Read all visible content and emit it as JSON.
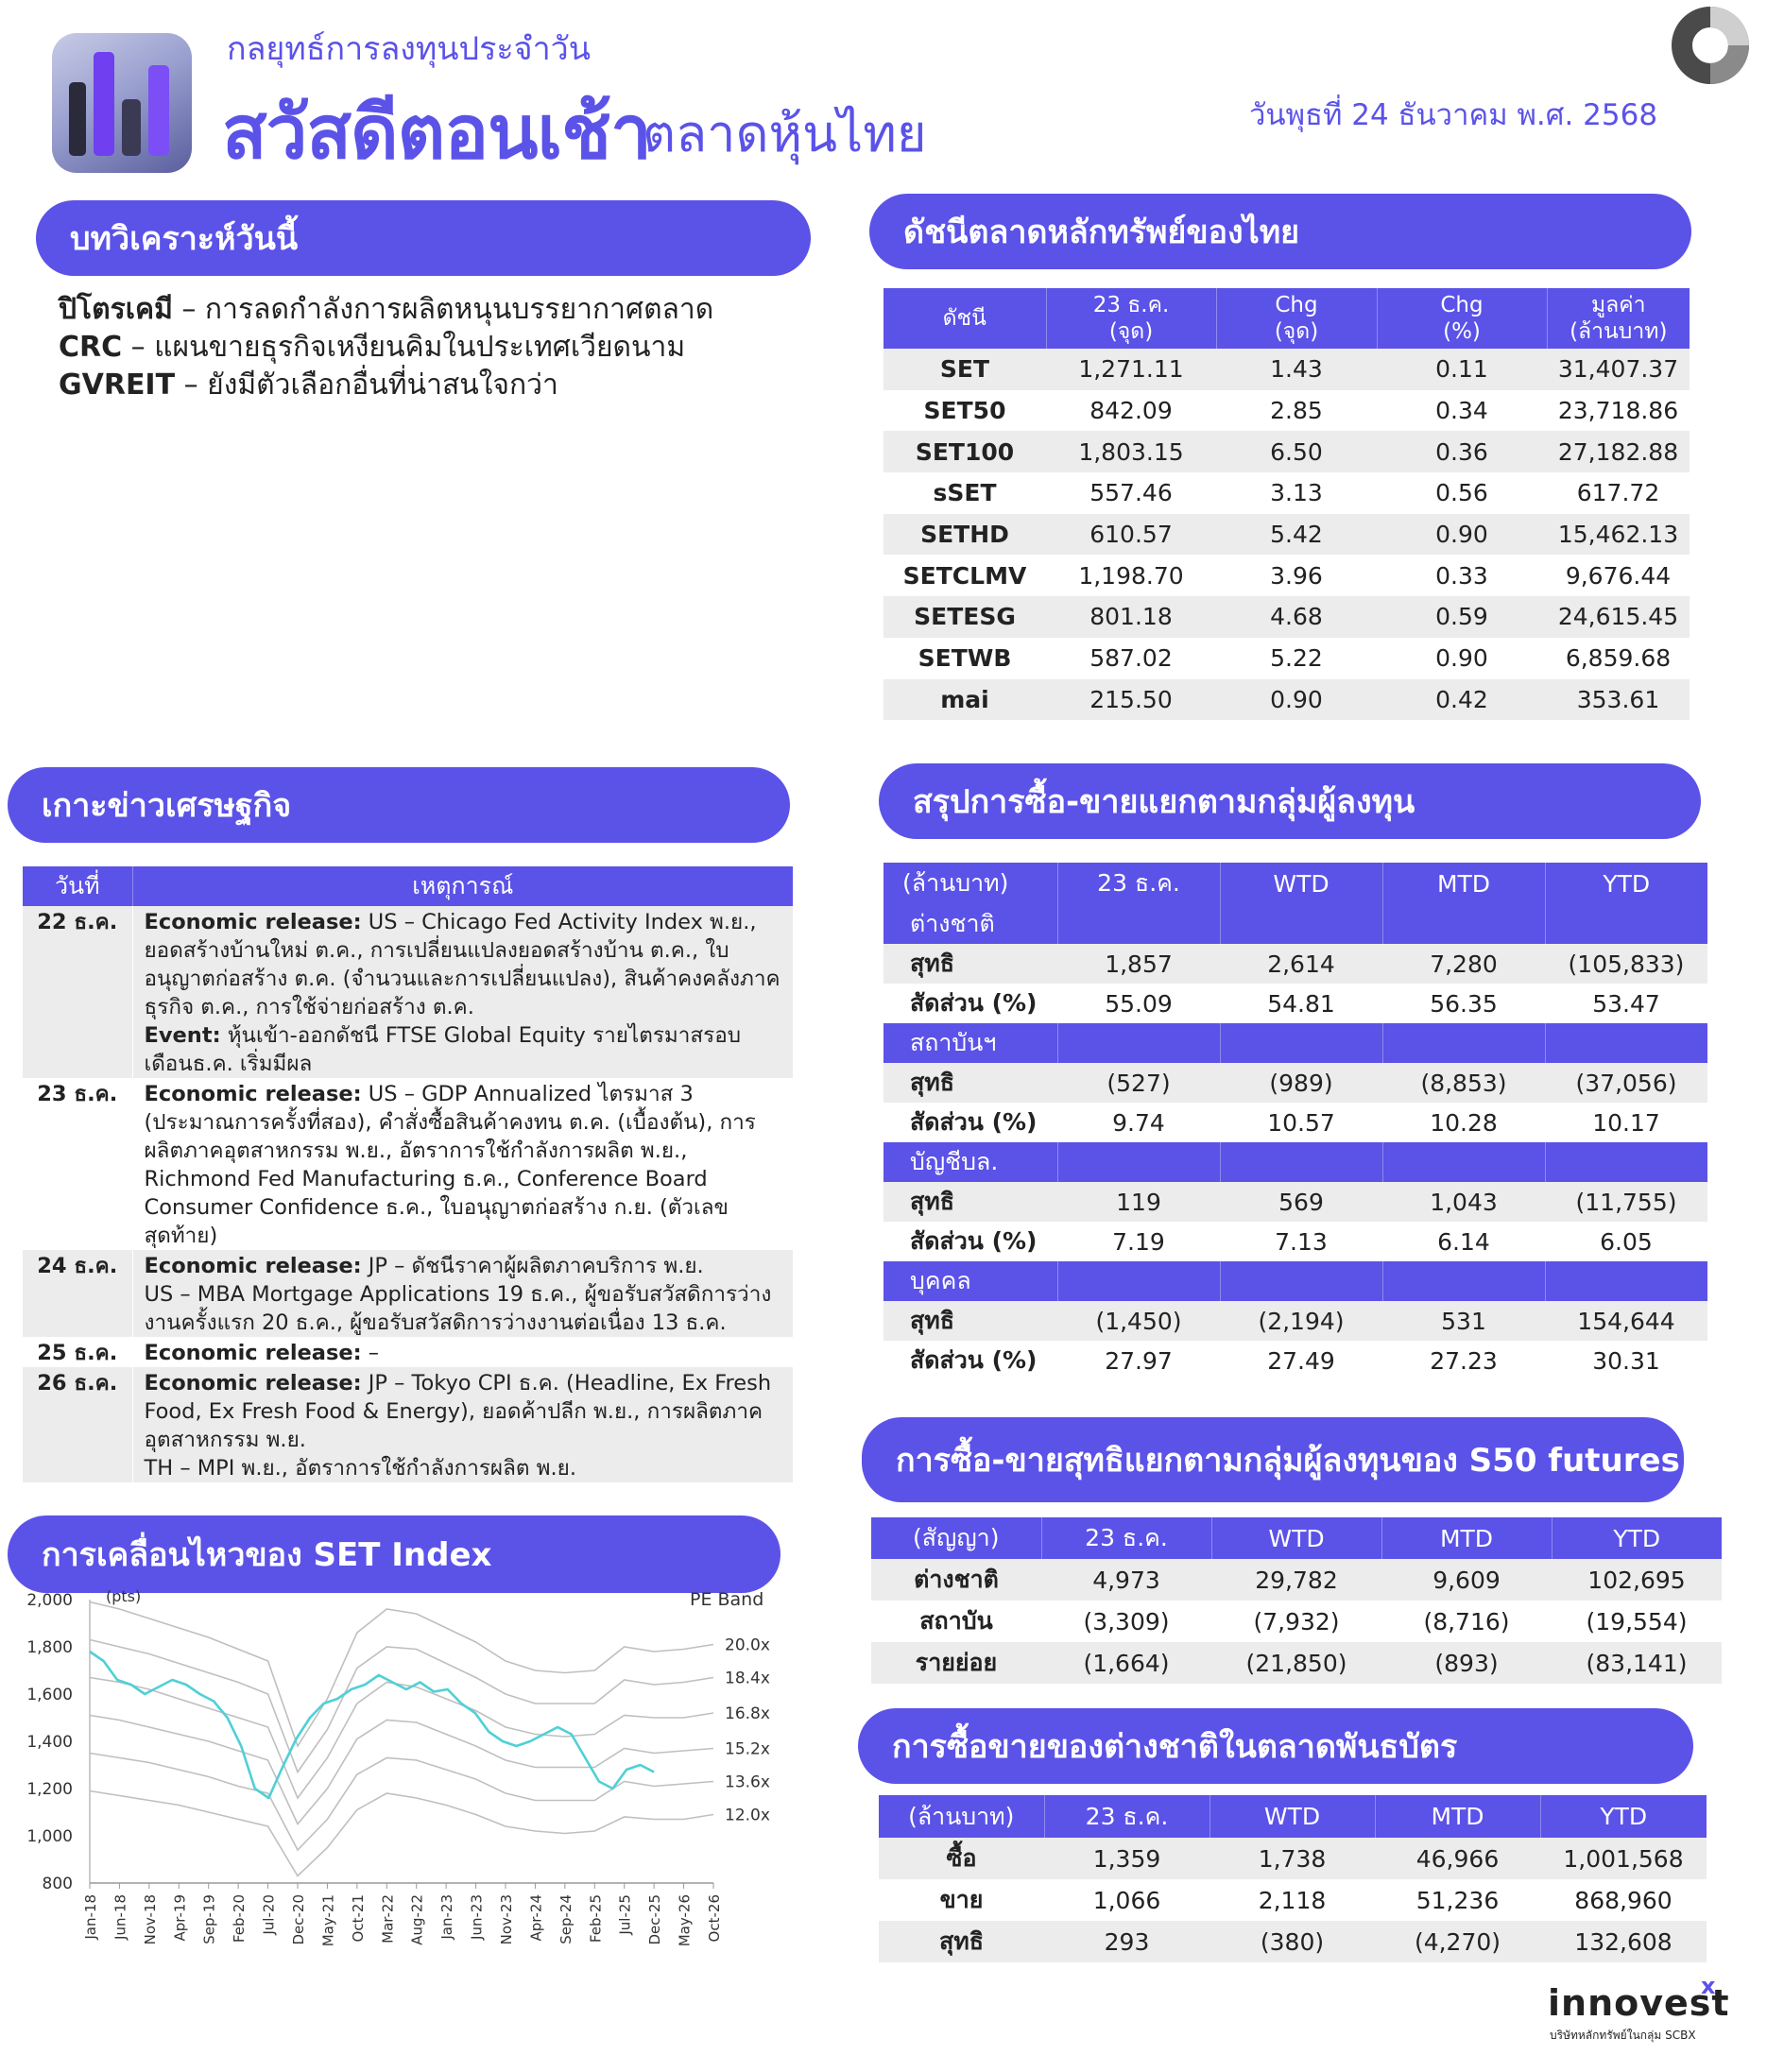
{
  "header": {
    "subtitle": "กลยุทธ์การลงทุนประจำวัน",
    "title": "สวัสดีตอนเช้า",
    "title2": "ตลาดหุ้นไทย",
    "date": "วันพุธที่ 24 ธันวาคม พ.ศ. 2568"
  },
  "analysis": {
    "heading": "บทวิเคราะห์วันนี้",
    "items": [
      {
        "name": "ปิโตรเคมี",
        "text": " – การลดกำลังการผลิตหนุนบรรยากาศตลาด"
      },
      {
        "name": "CRC",
        "text": " – แผนขายธุรกิจเหงียนคิมในประเทศเวียดนาม"
      },
      {
        "name": "GVREIT",
        "text": " – ยังมีตัวเลือกอื่นที่น่าสนใจกว่า"
      }
    ]
  },
  "index_table": {
    "heading": "ดัชนีตลาดหลักทรัพย์ของไทย",
    "headers": [
      [
        "ดัชนี",
        ""
      ],
      [
        "23 ธ.ค.",
        "(จุด)"
      ],
      [
        "Chg",
        "(จุด)"
      ],
      [
        "Chg",
        "(%)"
      ],
      [
        "มูลค่า",
        "(ล้านบาท)"
      ]
    ],
    "rows": [
      [
        "SET",
        "1,271.11",
        "1.43",
        "0.11",
        "31,407.37"
      ],
      [
        "SET50",
        "842.09",
        "2.85",
        "0.34",
        "23,718.86"
      ],
      [
        "SET100",
        "1,803.15",
        "6.50",
        "0.36",
        "27,182.88"
      ],
      [
        "sSET",
        "557.46",
        "3.13",
        "0.56",
        "617.72"
      ],
      [
        "SETHD",
        "610.57",
        "5.42",
        "0.90",
        "15,462.13"
      ],
      [
        "SETCLMV",
        "1,198.70",
        "3.96",
        "0.33",
        "9,676.44"
      ],
      [
        "SETESG",
        "801.18",
        "4.68",
        "0.59",
        "24,615.45"
      ],
      [
        "SETWB",
        "587.02",
        "5.22",
        "0.90",
        "6,859.68"
      ],
      [
        "mai",
        "215.50",
        "0.90",
        "0.42",
        "353.61"
      ]
    ]
  },
  "news": {
    "heading": "เกาะข่าวเศรษฐกิจ",
    "headers": [
      "วันที่",
      "เหตุการณ์"
    ],
    "rows": [
      {
        "date": "22 ธ.ค.",
        "lines": [
          {
            "b": "Economic release:",
            "t": " US – Chicago Fed Activity Index พ.ย., ยอดสร้างบ้านใหม่ ต.ค., การเปลี่ยนแปลงยอดสร้างบ้าน ต.ค., ใบอนุญาตก่อสร้าง ต.ค. (จำนวนและการเปลี่ยนแปลง), สินค้าคงคลังภาคธุรกิจ ต.ค., การใช้จ่ายก่อสร้าง ต.ค."
          },
          {
            "b": "Event:",
            "t": " หุ้นเข้า-ออกดัชนี FTSE Global Equity รายไตรมาสรอบเดือนธ.ค. เริ่มมีผล"
          }
        ]
      },
      {
        "date": "23 ธ.ค.",
        "lines": [
          {
            "b": "Economic release:",
            "t": " US – GDP Annualized ไตรมาส 3 (ประมาณการครั้งที่สอง), คำสั่งซื้อสินค้าคงทน ต.ค. (เบื้องต้น), การผลิตภาคอุตสาหกรรม พ.ย., อัตราการใช้กำลังการผลิต พ.ย., Richmond Fed Manufacturing ธ.ค., Conference Board Consumer Confidence ธ.ค., ใบอนุญาตก่อสร้าง ก.ย. (ตัวเลขสุดท้าย)"
          }
        ]
      },
      {
        "date": "24 ธ.ค.",
        "lines": [
          {
            "b": "Economic release:",
            "t": " JP – ดัชนีราคาผู้ผลิตภาคบริการ พ.ย."
          },
          {
            "b": "",
            "t": "US – MBA Mortgage Applications 19 ธ.ค., ผู้ขอรับสวัสดิการว่างงานครั้งแรก 20 ธ.ค., ผู้ขอรับสวัสดิการว่างงานต่อเนื่อง 13 ธ.ค."
          }
        ]
      },
      {
        "date": "25 ธ.ค.",
        "lines": [
          {
            "b": "Economic release:",
            "t": " –"
          }
        ]
      },
      {
        "date": "26 ธ.ค.",
        "lines": [
          {
            "b": "Economic release:",
            "t": " JP – Tokyo CPI ธ.ค. (Headline, Ex Fresh Food, Ex Fresh Food & Energy), ยอดค้าปลีก พ.ย., การผลิตภาคอุตสาหกรรม พ.ย."
          },
          {
            "b": "",
            "t": "TH – MPI พ.ย., อัตราการใช้กำลังการผลิต พ.ย."
          }
        ]
      }
    ]
  },
  "investor": {
    "heading": "สรุปการซื้อ-ขายแยกตามกลุ่มผู้ลงทุน",
    "headers": [
      "(ล้านบาท)",
      "23 ธ.ค.",
      "WTD",
      "MTD",
      "YTD"
    ],
    "groups": [
      {
        "name": "ต่างชาติ",
        "rows": [
          [
            "สุทธิ",
            "1,857",
            "2,614",
            "7,280",
            "(105,833)"
          ],
          [
            "สัดส่วน (%)",
            "55.09",
            "54.81",
            "56.35",
            "53.47"
          ]
        ]
      },
      {
        "name": "สถาบันฯ",
        "rows": [
          [
            "สุทธิ",
            "(527)",
            "(989)",
            "(8,853)",
            "(37,056)"
          ],
          [
            "สัดส่วน (%)",
            "9.74",
            "10.57",
            "10.28",
            "10.17"
          ]
        ]
      },
      {
        "name": "บัญชีบล.",
        "rows": [
          [
            "สุทธิ",
            "119",
            "569",
            "1,043",
            "(11,755)"
          ],
          [
            "สัดส่วน (%)",
            "7.19",
            "7.13",
            "6.14",
            "6.05"
          ]
        ]
      },
      {
        "name": "บุคคล",
        "rows": [
          [
            "สุทธิ",
            "(1,450)",
            "(2,194)",
            "531",
            "154,644"
          ],
          [
            "สัดส่วน (%)",
            "27.97",
            "27.49",
            "27.23",
            "30.31"
          ]
        ]
      }
    ]
  },
  "futures": {
    "heading": "การซื้อ-ขายสุทธิแยกตามกลุ่มผู้ลงทุนของ S50 futures",
    "headers": [
      "(สัญญา)",
      "23 ธ.ค.",
      "WTD",
      "MTD",
      "YTD"
    ],
    "rows": [
      [
        "ต่างชาติ",
        "4,973",
        "29,782",
        "9,609",
        "102,695"
      ],
      [
        "สถาบัน",
        "(3,309)",
        "(7,932)",
        "(8,716)",
        "(19,554)"
      ],
      [
        "รายย่อย",
        "(1,664)",
        "(21,850)",
        "(893)",
        "(83,141)"
      ]
    ]
  },
  "bond": {
    "heading": "การซื้อขายของต่างชาติในตลาดพันธบัตร",
    "headers": [
      "(ล้านบาท)",
      "23 ธ.ค.",
      "WTD",
      "MTD",
      "YTD"
    ],
    "rows": [
      [
        "ซื้อ",
        "1,359",
        "1,738",
        "46,966",
        "1,001,568"
      ],
      [
        "ขาย",
        "1,066",
        "2,118",
        "51,236",
        "868,960"
      ],
      [
        "สุทธิ",
        "293",
        "(380)",
        "(4,270)",
        "132,608"
      ]
    ]
  },
  "chart_section": {
    "heading": "การเคลื่อนไหวของ SET Index"
  },
  "chart_data": {
    "type": "line",
    "ylabel": "(pts)",
    "legend_title": "PE Band",
    "ylim": [
      800,
      2000
    ],
    "y_ticks": [
      "2,000",
      "1,800",
      "1,600",
      "1,400",
      "1,200",
      "1,000",
      "800"
    ],
    "x_ticks": [
      "Jan-18",
      "Jun-18",
      "Nov-18",
      "Apr-19",
      "Sep-19",
      "Feb-20",
      "Jul-20",
      "Dec-20",
      "May-21",
      "Oct-21",
      "Mar-22",
      "Aug-22",
      "Jan-23",
      "Jun-23",
      "Nov-23",
      "Apr-24",
      "Sep-24",
      "Feb-25",
      "Jul-25",
      "Dec-25",
      "May-26",
      "Oct-26"
    ],
    "bands": [
      {
        "name": "20.0x",
        "values": [
          1990,
          1960,
          1920,
          1880,
          1840,
          1790,
          1740,
          1380,
          1580,
          1860,
          1960,
          1940,
          1880,
          1820,
          1740,
          1700,
          1690,
          1700,
          1800,
          1780,
          1790,
          1810
        ]
      },
      {
        "name": "18.4x",
        "values": [
          1830,
          1800,
          1770,
          1730,
          1690,
          1650,
          1600,
          1270,
          1450,
          1710,
          1800,
          1790,
          1730,
          1670,
          1600,
          1560,
          1560,
          1560,
          1660,
          1640,
          1650,
          1670
        ]
      },
      {
        "name": "16.8x",
        "values": [
          1670,
          1650,
          1620,
          1580,
          1540,
          1500,
          1460,
          1160,
          1330,
          1560,
          1650,
          1630,
          1580,
          1530,
          1460,
          1430,
          1420,
          1430,
          1510,
          1500,
          1500,
          1520
        ]
      },
      {
        "name": "15.2x",
        "values": [
          1510,
          1490,
          1460,
          1430,
          1400,
          1360,
          1320,
          1050,
          1200,
          1410,
          1490,
          1480,
          1430,
          1380,
          1320,
          1290,
          1290,
          1290,
          1370,
          1350,
          1360,
          1370
        ]
      },
      {
        "name": "13.6x",
        "values": [
          1350,
          1330,
          1310,
          1280,
          1250,
          1210,
          1180,
          940,
          1070,
          1260,
          1330,
          1320,
          1280,
          1240,
          1180,
          1150,
          1150,
          1150,
          1230,
          1210,
          1220,
          1230
        ]
      },
      {
        "name": "12.0x",
        "values": [
          1190,
          1170,
          1150,
          1130,
          1100,
          1070,
          1040,
          830,
          950,
          1110,
          1180,
          1160,
          1130,
          1090,
          1040,
          1020,
          1010,
          1020,
          1080,
          1070,
          1070,
          1090
        ]
      }
    ],
    "set_index": [
      1780,
      1740,
      1660,
      1640,
      1600,
      1630,
      1660,
      1640,
      1600,
      1570,
      1500,
      1380,
      1200,
      1160,
      1290,
      1410,
      1500,
      1560,
      1580,
      1620,
      1640,
      1680,
      1650,
      1620,
      1650,
      1610,
      1620,
      1560,
      1520,
      1440,
      1400,
      1380,
      1400,
      1430,
      1460,
      1430,
      1330,
      1230,
      1200,
      1280,
      1300,
      1270
    ]
  },
  "footer": {
    "brand": "innovest",
    "x": "x",
    "sub": "บริษัทหลักทรัพย์ในกลุ่ม SCBX"
  },
  "colors": {
    "accent": "#5b52e8",
    "line": "#4fd0d6",
    "band": "#bfbfbf",
    "row_grey": "#ececec"
  }
}
